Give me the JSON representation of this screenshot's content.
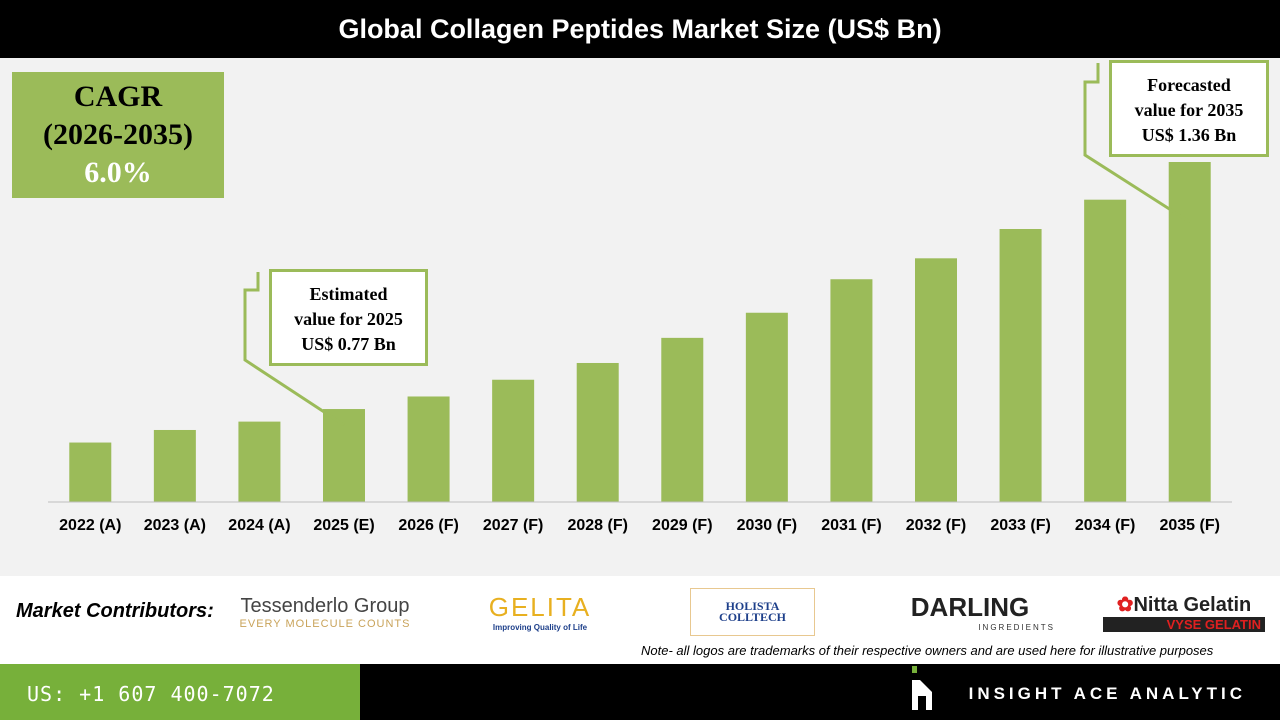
{
  "title": "Global Collagen Peptides Market Size (US$ Bn)",
  "cagr": {
    "label": "CAGR",
    "period": "(2026-2035)",
    "value": "6.0%"
  },
  "callouts": {
    "estimated": {
      "l1": "Estimated",
      "l2": "value for 2025",
      "l3": "US$ 0.77 Bn"
    },
    "forecast": {
      "l1": "Forecasted",
      "l2": "value for 2035",
      "l3": "US$ 1.36 Bn"
    }
  },
  "chart_data": {
    "type": "bar",
    "title": "Global Collagen Peptides Market Size (US$ Bn)",
    "categories": [
      "2022 (A)",
      "2023 (A)",
      "2024 (A)",
      "2025 (E)",
      "2026 (F)",
      "2027 (F)",
      "2028 (F)",
      "2029 (F)",
      "2030 (F)",
      "2031 (F)",
      "2032 (F)",
      "2033 (F)",
      "2034 (F)",
      "2035 (F)"
    ],
    "values": [
      0.69,
      0.72,
      0.74,
      0.77,
      0.8,
      0.84,
      0.88,
      0.94,
      1.0,
      1.08,
      1.13,
      1.2,
      1.27,
      1.36
    ],
    "ylim": [
      0.55,
      1.36
    ],
    "grid": false,
    "bar_color": "#9bbb59"
  },
  "footer": {
    "contributors_label": "Market Contributors:",
    "logos": [
      {
        "name": "Tessenderlo Group",
        "tagline": "EVERY MOLECULE COUNTS"
      },
      {
        "name": "GELITA",
        "tagline": "Improving Quality of Life"
      },
      {
        "name": "HOLISTA COLLTECH"
      },
      {
        "name": "DARLING",
        "tagline": "INGREDIENTS"
      },
      {
        "name": "Nitta Gelatin",
        "tagline": "VYSE GELATIN"
      }
    ],
    "note": "Note- all logos are trademarks of their respective owners and are used here for illustrative purposes",
    "phone": "US: +1 607 400-7072",
    "brand": "INSIGHT ACE ANALYTIC"
  }
}
